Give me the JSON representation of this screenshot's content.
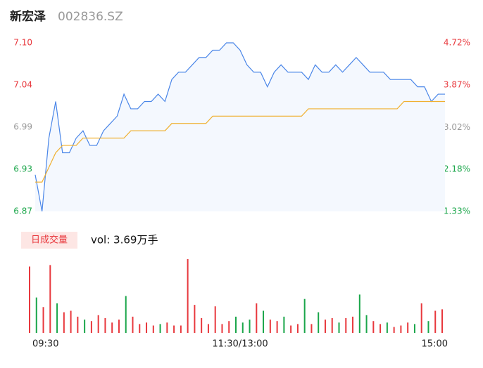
{
  "chart_data": [
    {
      "type": "line",
      "title": "新宏泽",
      "subtitle": "002836.SZ",
      "x": [
        0,
        4,
        8,
        12,
        16,
        20,
        24,
        28,
        32,
        36,
        40,
        44,
        48,
        52,
        56,
        60,
        64,
        68,
        72,
        76,
        80,
        84,
        88,
        92,
        96,
        100,
        104,
        108,
        112,
        116,
        120,
        124,
        128,
        132,
        136,
        140,
        144,
        148,
        152,
        156,
        160,
        164,
        168,
        172,
        176,
        180,
        184,
        188,
        192,
        196,
        200,
        204,
        208,
        212,
        216,
        220,
        224,
        228,
        232,
        236,
        240
      ],
      "xlim": [
        0,
        240
      ],
      "xticks": [
        {
          "value": 0,
          "label": "09:30"
        },
        {
          "value": 120,
          "label": "11:30/13:00"
        },
        {
          "value": 240,
          "label": "15:00"
        }
      ],
      "ylim": [
        6.87,
        7.1
      ],
      "yticks": [
        {
          "value": 7.1,
          "label": "7.10"
        },
        {
          "value": 7.0425,
          "label": "7.04"
        },
        {
          "value": 6.985,
          "label": "6.99"
        },
        {
          "value": 6.9275,
          "label": "6.93"
        },
        6.87
      ],
      "ytick_colors": [
        "#e8383d",
        "#e8383d",
        "#999999",
        "#1aa64a",
        "#1aa64a"
      ],
      "y2lim": [
        1.33,
        4.72
      ],
      "y2ticks": [
        {
          "value": 4.72,
          "label": "4.72%"
        },
        {
          "value": 3.87,
          "label": "3.87%"
        },
        {
          "value": 3.02,
          "label": "3.02%"
        },
        {
          "value": 2.18,
          "label": "2.18%"
        },
        {
          "value": 1.33,
          "label": "1.33%"
        }
      ],
      "series": [
        {
          "name": "price",
          "color": "#4a86e8",
          "values": [
            6.92,
            6.87,
            6.97,
            7.02,
            6.95,
            6.95,
            6.97,
            6.98,
            6.96,
            6.96,
            6.98,
            6.99,
            7.0,
            7.03,
            7.01,
            7.01,
            7.02,
            7.02,
            7.03,
            7.02,
            7.05,
            7.06,
            7.06,
            7.07,
            7.08,
            7.08,
            7.09,
            7.09,
            7.1,
            7.1,
            7.09,
            7.07,
            7.06,
            7.06,
            7.04,
            7.06,
            7.07,
            7.06,
            7.06,
            7.06,
            7.05,
            7.07,
            7.06,
            7.06,
            7.07,
            7.06,
            7.07,
            7.08,
            7.07,
            7.06,
            7.06,
            7.06,
            7.05,
            7.05,
            7.05,
            7.05,
            7.04,
            7.04,
            7.02,
            7.03,
            7.03
          ]
        },
        {
          "name": "average",
          "color": "#f0b030",
          "values": [
            6.91,
            6.91,
            6.93,
            6.95,
            6.96,
            6.96,
            6.96,
            6.97,
            6.97,
            6.97,
            6.97,
            6.97,
            6.97,
            6.97,
            6.98,
            6.98,
            6.98,
            6.98,
            6.98,
            6.98,
            6.99,
            6.99,
            6.99,
            6.99,
            6.99,
            6.99,
            7.0,
            7.0,
            7.0,
            7.0,
            7.0,
            7.0,
            7.0,
            7.0,
            7.0,
            7.0,
            7.0,
            7.0,
            7.0,
            7.0,
            7.01,
            7.01,
            7.01,
            7.01,
            7.01,
            7.01,
            7.01,
            7.01,
            7.01,
            7.01,
            7.01,
            7.01,
            7.01,
            7.01,
            7.02,
            7.02,
            7.02,
            7.02,
            7.02,
            7.02,
            7.02
          ]
        }
      ]
    },
    {
      "type": "bar",
      "title": "日成交量",
      "subtitle": "vol: 3.69万手",
      "x": [
        0,
        4,
        8,
        12,
        16,
        20,
        24,
        28,
        32,
        36,
        40,
        44,
        48,
        52,
        56,
        60,
        64,
        68,
        72,
        76,
        80,
        84,
        88,
        92,
        96,
        100,
        104,
        108,
        112,
        116,
        120,
        124,
        128,
        132,
        136,
        140,
        144,
        148,
        152,
        156,
        160,
        164,
        168,
        172,
        176,
        180,
        184,
        188,
        192,
        196,
        200,
        204,
        208,
        212,
        216,
        220,
        224,
        228,
        232,
        236,
        240
      ],
      "xlim": [
        0,
        240
      ],
      "ylim": [
        0,
        100
      ],
      "up_color": "#e8383d",
      "down_color": "#1aa64a",
      "values": [
        90,
        48,
        35,
        92,
        40,
        28,
        30,
        22,
        18,
        16,
        24,
        20,
        14,
        18,
        50,
        22,
        12,
        14,
        10,
        12,
        14,
        10,
        10,
        100,
        38,
        20,
        12,
        36,
        12,
        16,
        22,
        14,
        18,
        40,
        30,
        18,
        16,
        22,
        10,
        12,
        46,
        12,
        28,
        18,
        20,
        14,
        20,
        22,
        52,
        24,
        16,
        12,
        14,
        8,
        10,
        14,
        12,
        40,
        16,
        30,
        32
      ]
    }
  ]
}
